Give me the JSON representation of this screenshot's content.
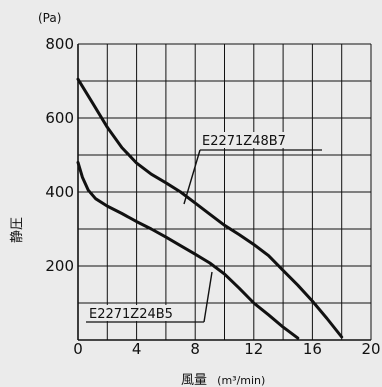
{
  "chart_data": {
    "type": "line",
    "y_unit": "(Pa)",
    "xlabel_main": "風量",
    "xlabel_unit": "(m³/min)",
    "ylabel": "静圧",
    "xlim": [
      0,
      20
    ],
    "ylim": [
      0,
      800
    ],
    "x_ticks": [
      "0",
      "4",
      "8",
      "12",
      "16",
      "20"
    ],
    "y_ticks": [
      "200",
      "400",
      "600",
      "800"
    ],
    "grid": true,
    "series": [
      {
        "name": "E2271Z48B7",
        "points": [
          [
            0,
            705
          ],
          [
            1,
            640
          ],
          [
            2,
            575
          ],
          [
            3,
            520
          ],
          [
            4,
            478
          ],
          [
            5,
            448
          ],
          [
            6,
            425
          ],
          [
            7,
            400
          ],
          [
            8,
            370
          ],
          [
            9,
            340
          ],
          [
            10,
            310
          ],
          [
            11,
            285
          ],
          [
            12,
            258
          ],
          [
            13,
            228
          ],
          [
            14,
            188
          ],
          [
            15,
            148
          ],
          [
            16,
            105
          ],
          [
            17,
            58
          ],
          [
            18,
            8
          ]
        ]
      },
      {
        "name": "E2271Z24B5",
        "points": [
          [
            0,
            480
          ],
          [
            0.3,
            440
          ],
          [
            0.7,
            405
          ],
          [
            1.2,
            382
          ],
          [
            2,
            362
          ],
          [
            3,
            342
          ],
          [
            4,
            320
          ],
          [
            5,
            300
          ],
          [
            6,
            278
          ],
          [
            7,
            255
          ],
          [
            8,
            232
          ],
          [
            9,
            208
          ],
          [
            10,
            178
          ],
          [
            11,
            140
          ],
          [
            12,
            100
          ],
          [
            13,
            68
          ],
          [
            14,
            35
          ],
          [
            15,
            5
          ]
        ]
      }
    ]
  },
  "colors": {
    "line": "#111111",
    "background": "#ebebeb"
  }
}
